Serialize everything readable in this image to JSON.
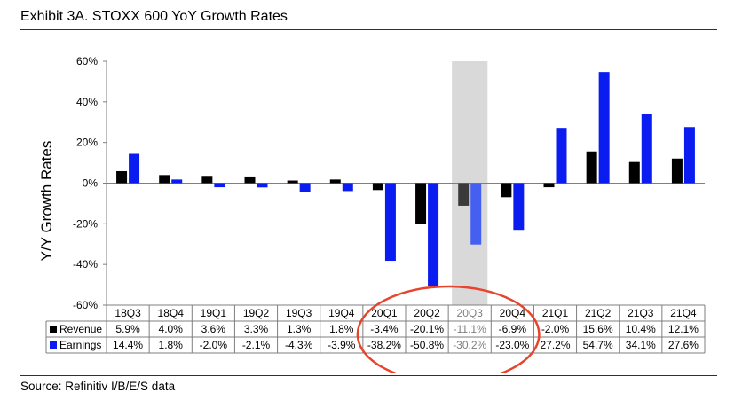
{
  "header": {
    "title": "Exhibit 3A.  STOXX 600 YoY Growth Rates"
  },
  "footer": {
    "source": "Source: Refinitiv I/B/E/S data"
  },
  "colors": {
    "revenue": "#000000",
    "earnings": "#0b1cf0",
    "highlight_band": "#d9d9d9",
    "highlight_earnings": "#4560f0",
    "circle": "#e8432c",
    "rule": "#1f2f63"
  },
  "chart_data": {
    "type": "bar",
    "ylabel": "Y/Y Growth Rates",
    "ylim": [
      -60,
      60
    ],
    "yticks": [
      "60%",
      "40%",
      "20%",
      "0%",
      "-20%",
      "-40%",
      "-60%"
    ],
    "ytick_values": [
      60,
      40,
      20,
      0,
      -20,
      -40,
      -60
    ],
    "categories": [
      "18Q3",
      "18Q4",
      "19Q1",
      "19Q2",
      "19Q3",
      "19Q4",
      "20Q1",
      "20Q2",
      "20Q3",
      "20Q4",
      "21Q1",
      "21Q2",
      "21Q3",
      "21Q4"
    ],
    "highlight_category": "20Q3",
    "circled_categories": [
      "20Q1",
      "20Q2",
      "20Q3",
      "20Q4"
    ],
    "series": [
      {
        "name": "Revenue",
        "values": [
          5.9,
          4.0,
          3.6,
          3.3,
          1.3,
          1.8,
          -3.4,
          -20.1,
          -11.1,
          -6.9,
          -2.0,
          15.6,
          10.4,
          12.1
        ],
        "labels": [
          "5.9%",
          "4.0%",
          "3.6%",
          "3.3%",
          "1.3%",
          "1.8%",
          "-3.4%",
          "-20.1%",
          "-11.1%",
          "-6.9%",
          "-2.0%",
          "15.6%",
          "10.4%",
          "12.1%"
        ]
      },
      {
        "name": "Earnings",
        "values": [
          14.4,
          1.8,
          -2.0,
          -2.1,
          -4.3,
          -3.9,
          -38.2,
          -50.8,
          -30.2,
          -23.0,
          27.2,
          54.7,
          34.1,
          27.6
        ],
        "labels": [
          "14.4%",
          "1.8%",
          "-2.0%",
          "-2.1%",
          "-4.3%",
          "-3.9%",
          "-38.2%",
          "-50.8%",
          "-30.2%",
          "-23.0%",
          "27.2%",
          "54.7%",
          "34.1%",
          "27.6%"
        ]
      }
    ],
    "grid": false,
    "legend": "table-below"
  }
}
